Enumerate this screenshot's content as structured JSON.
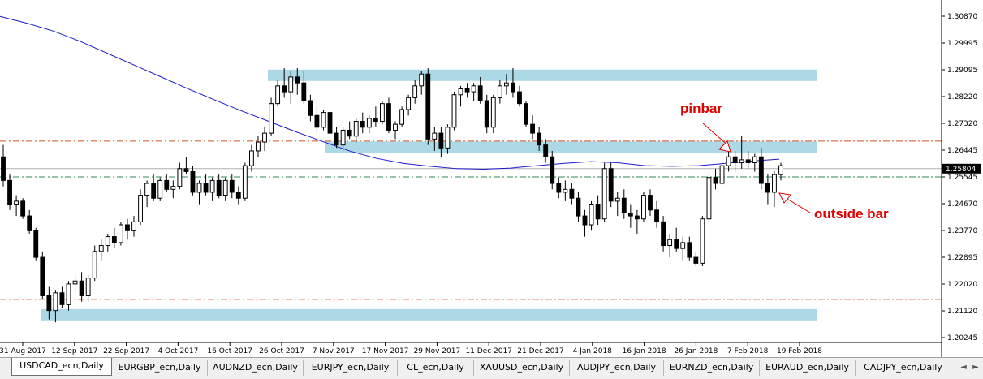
{
  "chart_data": {
    "type": "candlestick",
    "symbol_timeframe": "USDCAD_ecn,Daily",
    "current_price": "1.25804",
    "y_ticks": [
      "1.30870",
      "1.29995",
      "1.29095",
      "1.28220",
      "1.27320",
      "1.26445",
      "1.25545",
      "1.24670",
      "1.23770",
      "1.22895",
      "1.22020",
      "1.21120",
      "1.20245"
    ],
    "x_ticks": [
      "31 Aug 2017",
      "12 Sep 2017",
      "22 Sep 2017",
      "4 Oct 2017",
      "16 Oct 2017",
      "26 Oct 2017",
      "7 Nov 2017",
      "17 Nov 2017",
      "29 Nov 2017",
      "11 Dec 2017",
      "21 Dec 2017",
      "4 Jan 2018",
      "16 Jan 2018",
      "26 Jan 2018",
      "7 Feb 2018",
      "19 Feb 2018"
    ],
    "ylim": [
      1.1992,
      1.3145
    ],
    "zones": [
      {
        "from": 1.2878,
        "to": 1.2915
      },
      {
        "from": 1.264,
        "to": 1.2672
      },
      {
        "from": 1.2072,
        "to": 1.2105
      }
    ],
    "hlines_dashdot_red": [
      1.2673,
      1.2138
    ],
    "hline_dashdot_green": 1.2552,
    "hline_solid_gray": 1.258,
    "moving_average": [
      1.3095,
      1.3072,
      1.3045,
      1.301,
      1.297,
      1.293,
      1.289,
      1.285,
      1.2812,
      1.2775,
      1.274,
      1.2705,
      1.2672,
      1.264,
      1.2615,
      1.2598,
      1.2588,
      1.258,
      1.2578,
      1.2582,
      1.259,
      1.2598,
      1.2604,
      1.26,
      1.259,
      1.2588,
      1.259,
      1.2598,
      1.2606,
      1.2612
    ],
    "ohlc": [
      [
        1.262,
        1.266,
        1.252,
        1.254
      ],
      [
        1.254,
        1.256,
        1.244,
        1.246
      ],
      [
        1.246,
        1.249,
        1.242,
        1.247
      ],
      [
        1.247,
        1.248,
        1.241,
        1.242
      ],
      [
        1.242,
        1.244,
        1.236,
        1.237
      ],
      [
        1.237,
        1.238,
        1.227,
        1.228
      ],
      [
        1.228,
        1.23,
        1.214,
        1.215
      ],
      [
        1.215,
        1.218,
        1.207,
        1.21
      ],
      [
        1.21,
        1.217,
        1.206,
        1.216
      ],
      [
        1.216,
        1.218,
        1.211,
        1.212
      ],
      [
        1.212,
        1.22,
        1.21,
        1.219
      ],
      [
        1.219,
        1.222,
        1.216,
        1.22
      ],
      [
        1.22,
        1.223,
        1.213,
        1.215
      ],
      [
        1.215,
        1.222,
        1.213,
        1.221
      ],
      [
        1.221,
        1.232,
        1.22,
        1.23
      ],
      [
        1.23,
        1.234,
        1.227,
        1.232
      ],
      [
        1.232,
        1.236,
        1.23,
        1.235
      ],
      [
        1.235,
        1.238,
        1.231,
        1.233
      ],
      [
        1.233,
        1.24,
        1.232,
        1.239
      ],
      [
        1.239,
        1.241,
        1.234,
        1.237
      ],
      [
        1.237,
        1.242,
        1.235,
        1.24
      ],
      [
        1.24,
        1.251,
        1.239,
        1.249
      ],
      [
        1.249,
        1.254,
        1.245,
        1.253
      ],
      [
        1.253,
        1.256,
        1.247,
        1.248
      ],
      [
        1.248,
        1.255,
        1.247,
        1.254
      ],
      [
        1.254,
        1.256,
        1.25,
        1.251
      ],
      [
        1.251,
        1.254,
        1.248,
        1.252
      ],
      [
        1.252,
        1.26,
        1.251,
        1.258
      ],
      [
        1.258,
        1.262,
        1.256,
        1.257
      ],
      [
        1.257,
        1.259,
        1.249,
        1.25
      ],
      [
        1.25,
        1.254,
        1.246,
        1.253
      ],
      [
        1.253,
        1.256,
        1.249,
        1.25
      ],
      [
        1.25,
        1.255,
        1.247,
        1.254
      ],
      [
        1.254,
        1.256,
        1.248,
        1.249
      ],
      [
        1.249,
        1.255,
        1.247,
        1.254
      ],
      [
        1.254,
        1.256,
        1.248,
        1.25
      ],
      [
        1.25,
        1.252,
        1.246,
        1.248
      ],
      [
        1.248,
        1.26,
        1.247,
        1.259
      ],
      [
        1.259,
        1.266,
        1.257,
        1.264
      ],
      [
        1.264,
        1.269,
        1.262,
        1.267
      ],
      [
        1.267,
        1.272,
        1.264,
        1.27
      ],
      [
        1.27,
        1.282,
        1.269,
        1.28
      ],
      [
        1.28,
        1.288,
        1.279,
        1.286
      ],
      [
        1.286,
        1.292,
        1.282,
        1.284
      ],
      [
        1.284,
        1.291,
        1.28,
        1.289
      ],
      [
        1.289,
        1.292,
        1.283,
        1.287
      ],
      [
        1.287,
        1.291,
        1.28,
        1.281
      ],
      [
        1.281,
        1.283,
        1.274,
        1.276
      ],
      [
        1.276,
        1.279,
        1.27,
        1.272
      ],
      [
        1.272,
        1.278,
        1.271,
        1.277
      ],
      [
        1.277,
        1.279,
        1.269,
        1.27
      ],
      [
        1.27,
        1.272,
        1.265,
        1.266
      ],
      [
        1.266,
        1.272,
        1.264,
        1.271
      ],
      [
        1.271,
        1.274,
        1.268,
        1.269
      ],
      [
        1.269,
        1.275,
        1.267,
        1.274
      ],
      [
        1.274,
        1.277,
        1.27,
        1.272
      ],
      [
        1.272,
        1.276,
        1.27,
        1.275
      ],
      [
        1.275,
        1.279,
        1.272,
        1.274
      ],
      [
        1.274,
        1.281,
        1.273,
        1.28
      ],
      [
        1.28,
        1.282,
        1.27,
        1.271
      ],
      [
        1.271,
        1.274,
        1.268,
        1.273
      ],
      [
        1.273,
        1.279,
        1.272,
        1.278
      ],
      [
        1.278,
        1.283,
        1.276,
        1.282
      ],
      [
        1.282,
        1.288,
        1.28,
        1.286
      ],
      [
        1.286,
        1.291,
        1.283,
        1.29
      ],
      [
        1.29,
        1.292,
        1.266,
        1.268
      ],
      [
        1.268,
        1.272,
        1.264,
        1.27
      ],
      [
        1.27,
        1.272,
        1.262,
        1.265
      ],
      [
        1.265,
        1.273,
        1.263,
        1.272
      ],
      [
        1.272,
        1.284,
        1.271,
        1.283
      ],
      [
        1.283,
        1.286,
        1.279,
        1.285
      ],
      [
        1.285,
        1.287,
        1.282,
        1.284
      ],
      [
        1.284,
        1.287,
        1.281,
        1.286
      ],
      [
        1.286,
        1.289,
        1.28,
        1.281
      ],
      [
        1.281,
        1.283,
        1.27,
        1.272
      ],
      [
        1.272,
        1.283,
        1.27,
        1.282
      ],
      [
        1.282,
        1.288,
        1.28,
        1.286
      ],
      [
        1.286,
        1.29,
        1.283,
        1.287
      ],
      [
        1.287,
        1.292,
        1.282,
        1.284
      ],
      [
        1.284,
        1.286,
        1.279,
        1.28
      ],
      [
        1.28,
        1.281,
        1.272,
        1.273
      ],
      [
        1.273,
        1.276,
        1.268,
        1.27
      ],
      [
        1.27,
        1.272,
        1.264,
        1.266
      ],
      [
        1.266,
        1.268,
        1.26,
        1.262
      ],
      [
        1.262,
        1.264,
        1.251,
        1.253
      ],
      [
        1.253,
        1.255,
        1.248,
        1.25
      ],
      [
        1.25,
        1.254,
        1.247,
        1.251
      ],
      [
        1.251,
        1.253,
        1.246,
        1.248
      ],
      [
        1.248,
        1.25,
        1.24,
        1.242
      ],
      [
        1.242,
        1.244,
        1.235,
        1.239
      ],
      [
        1.239,
        1.247,
        1.237,
        1.246
      ],
      [
        1.246,
        1.249,
        1.239,
        1.241
      ],
      [
        1.241,
        1.26,
        1.24,
        1.258
      ],
      [
        1.258,
        1.26,
        1.245,
        1.247
      ],
      [
        1.247,
        1.25,
        1.242,
        1.248
      ],
      [
        1.248,
        1.251,
        1.241,
        1.243
      ],
      [
        1.243,
        1.246,
        1.238,
        1.242
      ],
      [
        1.242,
        1.244,
        1.236,
        1.241
      ],
      [
        1.241,
        1.25,
        1.24,
        1.249
      ],
      [
        1.249,
        1.251,
        1.242,
        1.244
      ],
      [
        1.244,
        1.247,
        1.238,
        1.24
      ],
      [
        1.24,
        1.242,
        1.23,
        1.232
      ],
      [
        1.232,
        1.236,
        1.228,
        1.234
      ],
      [
        1.234,
        1.238,
        1.23,
        1.231
      ],
      [
        1.231,
        1.235,
        1.227,
        1.233
      ],
      [
        1.233,
        1.235,
        1.227,
        1.228
      ],
      [
        1.228,
        1.23,
        1.225,
        1.226
      ],
      [
        1.226,
        1.242,
        1.225,
        1.241
      ],
      [
        1.241,
        1.257,
        1.24,
        1.255
      ],
      [
        1.255,
        1.258,
        1.251,
        1.253
      ],
      [
        1.253,
        1.26,
        1.252,
        1.259
      ],
      [
        1.259,
        1.264,
        1.257,
        1.262
      ],
      [
        1.262,
        1.264,
        1.257,
        1.26
      ],
      [
        1.26,
        1.269,
        1.258,
        1.261
      ],
      [
        1.261,
        1.264,
        1.258,
        1.26
      ],
      [
        1.26,
        1.263,
        1.257,
        1.262
      ],
      [
        1.262,
        1.265,
        1.251,
        1.253
      ],
      [
        1.253,
        1.256,
        1.246,
        1.25
      ],
      [
        1.25,
        1.257,
        1.245,
        1.256
      ],
      [
        1.256,
        1.26,
        1.254,
        1.259
      ]
    ]
  },
  "annotations": {
    "pinbar_label": "pinbar",
    "outside_bar_label": "outside bar"
  },
  "tabs": [
    {
      "label": "USDCAD_ecn,Daily",
      "active": true
    },
    {
      "label": "EURGBP_ecn,Daily",
      "active": false
    },
    {
      "label": "AUDNZD_ecn,Daily",
      "active": false
    },
    {
      "label": "EURJPY_ecn,Daily",
      "active": false
    },
    {
      "label": "CL_ecn,Daily",
      "active": false
    },
    {
      "label": "XAUUSD_ecn,Daily",
      "active": false
    },
    {
      "label": "AUDJPY_ecn,Daily",
      "active": false
    },
    {
      "label": "EURNZD_ecn,Daily",
      "active": false
    },
    {
      "label": "EURAUD_ecn,Daily",
      "active": false
    },
    {
      "label": "CADJPY_ecn,Daily",
      "active": false
    }
  ],
  "nav": {
    "left": "◄",
    "right": "►"
  },
  "colors": {
    "zone": "#add8e6",
    "ma": "#1a1acc",
    "red_line": "#d9541e",
    "green_line": "#2e8b57",
    "candle": "#000000",
    "annotation": "#e00000"
  }
}
